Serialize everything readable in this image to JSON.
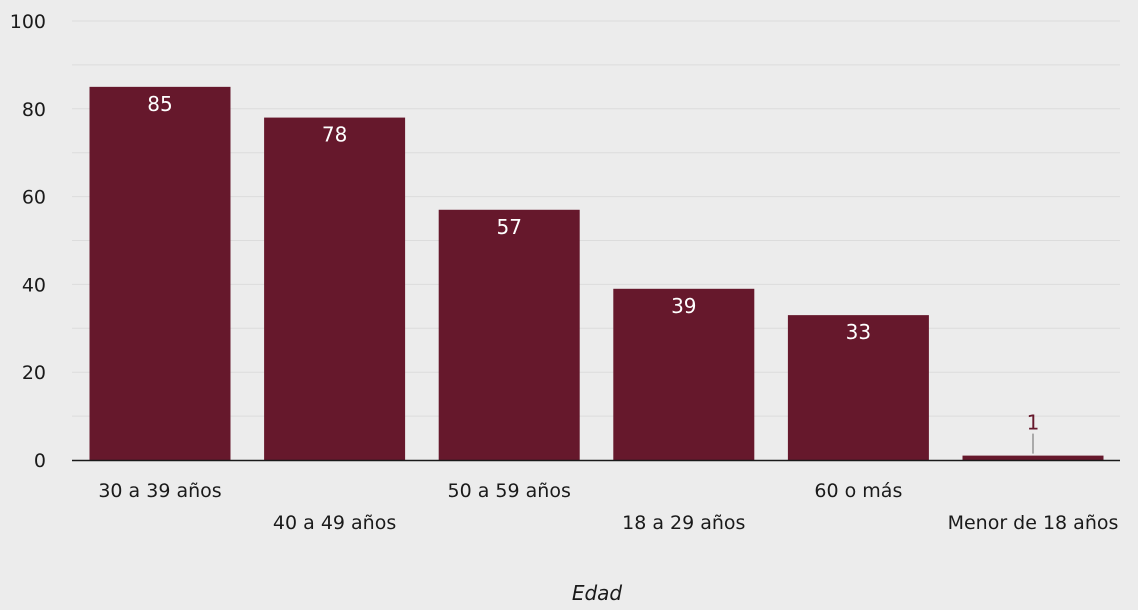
{
  "chart_data": {
    "type": "bar",
    "categories": [
      "30 a 39 años",
      "40 a 49 años",
      "50 a 59 años",
      "18 a 29 años",
      "60 o más",
      "Menor de 18 años"
    ],
    "values": [
      85,
      78,
      57,
      39,
      33,
      1
    ],
    "data_labels": [
      "85",
      "78",
      "57",
      "39",
      "33",
      "1"
    ],
    "title": "",
    "xlabel": "Edad",
    "ylabel": "",
    "ylim": [
      0,
      100
    ],
    "yticks": [
      0,
      20,
      40,
      60,
      80,
      100
    ],
    "ytick_labels": [
      "0",
      "20",
      "40",
      "60",
      "80",
      "100"
    ],
    "grid": true,
    "legend": "none",
    "colors": {
      "bar": "#66182c",
      "label_inside": "#ffffff",
      "label_outside": "#66182c",
      "background": "#ececec",
      "gridline": "#dcdcdc",
      "axis": "#1a1a1a"
    }
  }
}
